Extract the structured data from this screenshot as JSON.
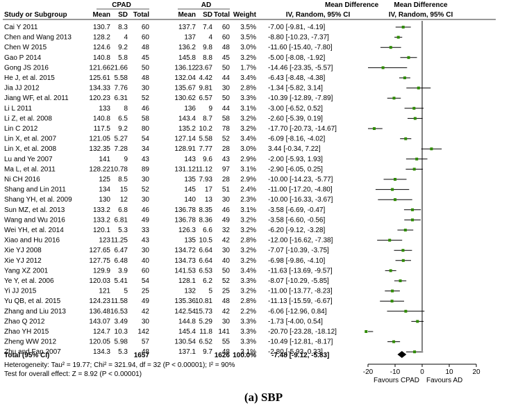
{
  "caption": "(a) SBP",
  "headers": {
    "group1": "CPAD",
    "group2": "AD",
    "study": "Study or Subgroup",
    "mean1": "Mean",
    "sd1": "SD",
    "total1": "Total",
    "mean2": "Mean",
    "sd2": "SD",
    "total2": "Total",
    "weight": "Weight",
    "md_title": "Mean Difference",
    "md_sub": "IV, Random, 95% CI",
    "plot_title": "Mean Difference",
    "plot_sub": "IV, Random, 95% CI"
  },
  "colors": {
    "header_rule": "#5a5a5a",
    "point": "#2e8b00",
    "line": "#000000",
    "diamond": "#000000"
  },
  "chart_data": {
    "type": "forest",
    "xlim": [
      -20,
      20
    ],
    "xticks": [
      -20,
      -10,
      0,
      10,
      20
    ],
    "xticklabels": [
      "-20",
      "-10",
      "0",
      "10",
      "20"
    ],
    "favours_left": "Favours CPAD",
    "favours_right": "Favours AD",
    "studies": [
      {
        "name": "Cai Y 2011",
        "m1": "130.7",
        "sd1": "8.3",
        "n1": "60",
        "m2": "137.7",
        "sd2": "7.4",
        "n2": "60",
        "w": "3.5%",
        "ci": "-7.00 [-9.81, -4.19]",
        "md": -7.0,
        "lo": -9.81,
        "hi": -4.19
      },
      {
        "name": "Chen and Wang 2013",
        "m1": "128.2",
        "sd1": "4",
        "n1": "60",
        "m2": "137",
        "sd2": "4",
        "n2": "60",
        "w": "3.5%",
        "ci": "-8.80 [-10.23, -7.37]",
        "md": -8.8,
        "lo": -10.23,
        "hi": -7.37
      },
      {
        "name": "Chen W 2015",
        "m1": "124.6",
        "sd1": "9.2",
        "n1": "48",
        "m2": "136.2",
        "sd2": "9.8",
        "n2": "48",
        "w": "3.0%",
        "ci": "-11.60 [-15.40, -7.80]",
        "md": -11.6,
        "lo": -15.4,
        "hi": -7.8
      },
      {
        "name": "Gao P 2014",
        "m1": "140.8",
        "sd1": "5.8",
        "n1": "45",
        "m2": "145.8",
        "sd2": "8.8",
        "n2": "45",
        "w": "3.2%",
        "ci": "-5.00 [-8.08, -1.92]",
        "md": -5.0,
        "lo": -8.08,
        "hi": -1.92
      },
      {
        "name": "Gong JS 2016",
        "m1": "121.66",
        "sd1": "21.66",
        "n1": "50",
        "m2": "136.12",
        "sd2": "23.67",
        "n2": "50",
        "w": "1.7%",
        "ci": "-14.46 [-23.35, -5.57]",
        "md": -14.46,
        "lo": -23.35,
        "hi": -5.57
      },
      {
        "name": "He J, et al. 2015",
        "m1": "125.61",
        "sd1": "5.58",
        "n1": "48",
        "m2": "132.04",
        "sd2": "4.42",
        "n2": "44",
        "w": "3.4%",
        "ci": "-6.43 [-8.48, -4.38]",
        "md": -6.43,
        "lo": -8.48,
        "hi": -4.38
      },
      {
        "name": "Jia JJ 2012",
        "m1": "134.33",
        "sd1": "7.76",
        "n1": "30",
        "m2": "135.67",
        "sd2": "9.81",
        "n2": "30",
        "w": "2.8%",
        "ci": "-1.34 [-5.82, 3.14]",
        "md": -1.34,
        "lo": -5.82,
        "hi": 3.14
      },
      {
        "name": "Jiang WF, et al. 2011",
        "m1": "120.23",
        "sd1": "6.31",
        "n1": "52",
        "m2": "130.62",
        "sd2": "6.57",
        "n2": "50",
        "w": "3.3%",
        "ci": "-10.39 [-12.89, -7.89]",
        "md": -10.39,
        "lo": -12.89,
        "hi": -7.89
      },
      {
        "name": "Li L 2011",
        "m1": "133",
        "sd1": "8",
        "n1": "46",
        "m2": "136",
        "sd2": "9",
        "n2": "44",
        "w": "3.1%",
        "ci": "-3.00 [-6.52, 0.52]",
        "md": -3.0,
        "lo": -6.52,
        "hi": 0.52
      },
      {
        "name": "Li Z, et al. 2008",
        "m1": "140.8",
        "sd1": "6.5",
        "n1": "58",
        "m2": "143.4",
        "sd2": "8.7",
        "n2": "58",
        "w": "3.2%",
        "ci": "-2.60 [-5.39, 0.19]",
        "md": -2.6,
        "lo": -5.39,
        "hi": 0.19
      },
      {
        "name": "Lin C 2012",
        "m1": "117.5",
        "sd1": "9.2",
        "n1": "80",
        "m2": "135.2",
        "sd2": "10.2",
        "n2": "78",
        "w": "3.2%",
        "ci": "-17.70 [-20.73, -14.67]",
        "md": -17.7,
        "lo": -20.73,
        "hi": -14.67
      },
      {
        "name": "Lin X, et al. 2007",
        "m1": "121.05",
        "sd1": "5.27",
        "n1": "54",
        "m2": "127.14",
        "sd2": "5.58",
        "n2": "52",
        "w": "3.4%",
        "ci": "-6.09 [-8.16, -4.02]",
        "md": -6.09,
        "lo": -8.16,
        "hi": -4.02
      },
      {
        "name": "Lin X, et al. 2008",
        "m1": "132.35",
        "sd1": "7.28",
        "n1": "34",
        "m2": "128.91",
        "sd2": "7.77",
        "n2": "28",
        "w": "3.0%",
        "ci": "3.44 [-0.34, 7.22]",
        "md": 3.44,
        "lo": -0.34,
        "hi": 7.22
      },
      {
        "name": "Lu and Ye 2007",
        "m1": "141",
        "sd1": "9",
        "n1": "43",
        "m2": "143",
        "sd2": "9.6",
        "n2": "43",
        "w": "2.9%",
        "ci": "-2.00 [-5.93, 1.93]",
        "md": -2.0,
        "lo": -5.93,
        "hi": 1.93
      },
      {
        "name": "Ma L, et al. 2011",
        "m1": "128.22",
        "sd1": "10.78",
        "n1": "89",
        "m2": "131.12",
        "sd2": "11.12",
        "n2": "97",
        "w": "3.1%",
        "ci": "-2.90 [-6.05, 0.25]",
        "md": -2.9,
        "lo": -6.05,
        "hi": 0.25
      },
      {
        "name": "Ni CH 2016",
        "m1": "125",
        "sd1": "8.5",
        "n1": "30",
        "m2": "135",
        "sd2": "7.93",
        "n2": "28",
        "w": "2.9%",
        "ci": "-10.00 [-14.23, -5.77]",
        "md": -10.0,
        "lo": -14.23,
        "hi": -5.77
      },
      {
        "name": "Shang and Lin 2011",
        "m1": "134",
        "sd1": "15",
        "n1": "52",
        "m2": "145",
        "sd2": "17",
        "n2": "51",
        "w": "2.4%",
        "ci": "-11.00 [-17.20, -4.80]",
        "md": -11.0,
        "lo": -17.2,
        "hi": -4.8
      },
      {
        "name": "Shang YH, et al. 2009",
        "m1": "130",
        "sd1": "12",
        "n1": "30",
        "m2": "140",
        "sd2": "13",
        "n2": "30",
        "w": "2.3%",
        "ci": "-10.00 [-16.33, -3.67]",
        "md": -10.0,
        "lo": -16.33,
        "hi": -3.67
      },
      {
        "name": "Sun MZ, et al. 2013",
        "m1": "133.2",
        "sd1": "6.8",
        "n1": "46",
        "m2": "136.78",
        "sd2": "8.35",
        "n2": "46",
        "w": "3.1%",
        "ci": "-3.58 [-6.69, -0.47]",
        "md": -3.58,
        "lo": -6.69,
        "hi": -0.47
      },
      {
        "name": "Wang and Wu 2016",
        "m1": "133.2",
        "sd1": "6.81",
        "n1": "49",
        "m2": "136.78",
        "sd2": "8.36",
        "n2": "49",
        "w": "3.2%",
        "ci": "-3.58 [-6.60, -0.56]",
        "md": -3.58,
        "lo": -6.6,
        "hi": -0.56
      },
      {
        "name": "Wei YH, et al. 2014",
        "m1": "120.1",
        "sd1": "5.3",
        "n1": "33",
        "m2": "126.3",
        "sd2": "6.6",
        "n2": "32",
        "w": "3.2%",
        "ci": "-6.20 [-9.12, -3.28]",
        "md": -6.2,
        "lo": -9.12,
        "hi": -3.28
      },
      {
        "name": "Xiao and Hu 2016",
        "m1": "123",
        "sd1": "11.25",
        "n1": "43",
        "m2": "135",
        "sd2": "10.5",
        "n2": "42",
        "w": "2.8%",
        "ci": "-12.00 [-16.62, -7.38]",
        "md": -12.0,
        "lo": -16.62,
        "hi": -7.38
      },
      {
        "name": "Xie YJ 2008",
        "m1": "127.65",
        "sd1": "6.47",
        "n1": "30",
        "m2": "134.72",
        "sd2": "6.64",
        "n2": "30",
        "w": "3.2%",
        "ci": "-7.07 [-10.39, -3.75]",
        "md": -7.07,
        "lo": -10.39,
        "hi": -3.75
      },
      {
        "name": "Xie YJ 2012",
        "m1": "127.75",
        "sd1": "6.48",
        "n1": "40",
        "m2": "134.73",
        "sd2": "6.64",
        "n2": "40",
        "w": "3.2%",
        "ci": "-6.98 [-9.86, -4.10]",
        "md": -6.98,
        "lo": -9.86,
        "hi": -4.1
      },
      {
        "name": "Yang XZ 2001",
        "m1": "129.9",
        "sd1": "3.9",
        "n1": "60",
        "m2": "141.53",
        "sd2": "6.53",
        "n2": "50",
        "w": "3.4%",
        "ci": "-11.63 [-13.69, -9.57]",
        "md": -11.63,
        "lo": -13.69,
        "hi": -9.57
      },
      {
        "name": "Ye Y, et al. 2006",
        "m1": "120.03",
        "sd1": "5.41",
        "n1": "54",
        "m2": "128.1",
        "sd2": "6.2",
        "n2": "52",
        "w": "3.3%",
        "ci": "-8.07 [-10.29, -5.85]",
        "md": -8.07,
        "lo": -10.29,
        "hi": -5.85
      },
      {
        "name": "Yi JJ 2015",
        "m1": "121",
        "sd1": "5",
        "n1": "25",
        "m2": "132",
        "sd2": "5",
        "n2": "25",
        "w": "3.2%",
        "ci": "-11.00 [-13.77, -8.23]",
        "md": -11.0,
        "lo": -13.77,
        "hi": -8.23
      },
      {
        "name": "Yu QB, et al. 2015",
        "m1": "124.23",
        "sd1": "11.58",
        "n1": "49",
        "m2": "135.36",
        "sd2": "10.81",
        "n2": "48",
        "w": "2.8%",
        "ci": "-11.13 [-15.59, -6.67]",
        "md": -11.13,
        "lo": -15.59,
        "hi": -6.67
      },
      {
        "name": "Zhang and Liu 2013",
        "m1": "136.48",
        "sd1": "16.53",
        "n1": "42",
        "m2": "142.54",
        "sd2": "15.73",
        "n2": "42",
        "w": "2.2%",
        "ci": "-6.06 [-12.96, 0.84]",
        "md": -6.06,
        "lo": -12.96,
        "hi": 0.84
      },
      {
        "name": "Zhao Q 2012",
        "m1": "143.07",
        "sd1": "3.49",
        "n1": "30",
        "m2": "144.8",
        "sd2": "5.29",
        "n2": "30",
        "w": "3.3%",
        "ci": "-1.73 [-4.00, 0.54]",
        "md": -1.73,
        "lo": -4.0,
        "hi": 0.54
      },
      {
        "name": "Zhao YH 2015",
        "m1": "124.7",
        "sd1": "10.3",
        "n1": "142",
        "m2": "145.4",
        "sd2": "11.8",
        "n2": "141",
        "w": "3.3%",
        "ci": "-20.70 [-23.28, -18.12]",
        "md": -20.7,
        "lo": -23.28,
        "hi": -18.12
      },
      {
        "name": "Zheng WW 2012",
        "m1": "120.05",
        "sd1": "5.98",
        "n1": "57",
        "m2": "130.54",
        "sd2": "6.52",
        "n2": "55",
        "w": "3.3%",
        "ci": "-10.49 [-12.81, -8.17]",
        "md": -10.49,
        "lo": -12.81,
        "hi": -8.17
      },
      {
        "name": "Zhu and Fan 2007",
        "m1": "134.3",
        "sd1": "5.3",
        "n1": "48",
        "m2": "137.1",
        "sd2": "9.7",
        "n2": "48",
        "w": "3.1%",
        "ci": "-2.80 [-5.93, 0.33]",
        "md": -2.8,
        "lo": -5.93,
        "hi": 0.33
      }
    ],
    "total": {
      "name": "Total (95% CI)",
      "n1": "1657",
      "n2": "1626",
      "w": "100.0%",
      "ci": "-7.48 [-9.12, -5.83]",
      "md": -7.48,
      "lo": -9.12,
      "hi": -5.83
    },
    "heterogeneity": "Heterogeneity: Tau² = 19.77; Chi² = 321.94, df = 32 (P < 0.00001); I² = 90%",
    "overall_effect": "Test for overall effect: Z = 8.92 (P < 0.00001)"
  }
}
